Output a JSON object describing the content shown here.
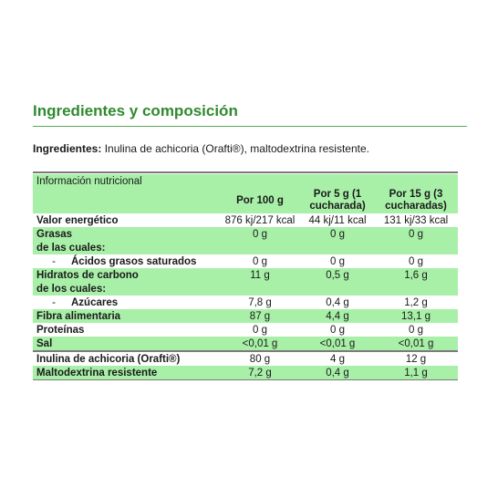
{
  "section_title": "Ingredientes y composición",
  "ingredients": {
    "label": "Ingredientes:",
    "text": " Inulina de achicoria (Orafti®), maltodextrina resistente."
  },
  "table": {
    "caption": "Información nutricional",
    "headers": [
      "Por 100 g",
      "Por 5 g (1 cucharada)",
      "Por 15 g (3 cucharadas)"
    ],
    "rows": [
      {
        "label": "Valor energético",
        "values": [
          "876 kj/217 kcal",
          "44 kj/11 kcal",
          "131 kj/33 kcal"
        ]
      },
      {
        "label": "Grasas",
        "values": [
          "0 g",
          "0 g",
          "0 g"
        ]
      },
      {
        "label": "de las cuales:",
        "values": [
          "",
          "",
          ""
        ]
      },
      {
        "prefix": "-",
        "label": "Ácidos grasos saturados",
        "values": [
          "0 g",
          "0 g",
          "0 g"
        ]
      },
      {
        "label": "Hidratos de carbono",
        "values": [
          "11 g",
          "0,5 g",
          "1,6 g"
        ]
      },
      {
        "label": "de los cuales:",
        "values": [
          "",
          "",
          ""
        ]
      },
      {
        "prefix": "-",
        "label": "Azúcares",
        "values": [
          "7,8 g",
          "0,4 g",
          "1,2 g"
        ]
      },
      {
        "label": "Fibra alimentaria",
        "values": [
          "87 g",
          "4,4 g",
          "13,1 g"
        ]
      },
      {
        "label": "Proteínas",
        "values": [
          "0 g",
          "0 g",
          "0 g"
        ]
      },
      {
        "label": "Sal",
        "values": [
          "<0,01 g",
          "<0,01 g",
          "<0,01 g"
        ]
      },
      {
        "label": "Inulina de achicoria (Orafti®)",
        "values": [
          "80 g",
          "4 g",
          "12 g"
        ]
      },
      {
        "label": "Maltodextrina resistente",
        "values": [
          "7,2 g",
          "0,4 g",
          "1,1 g"
        ]
      }
    ]
  }
}
